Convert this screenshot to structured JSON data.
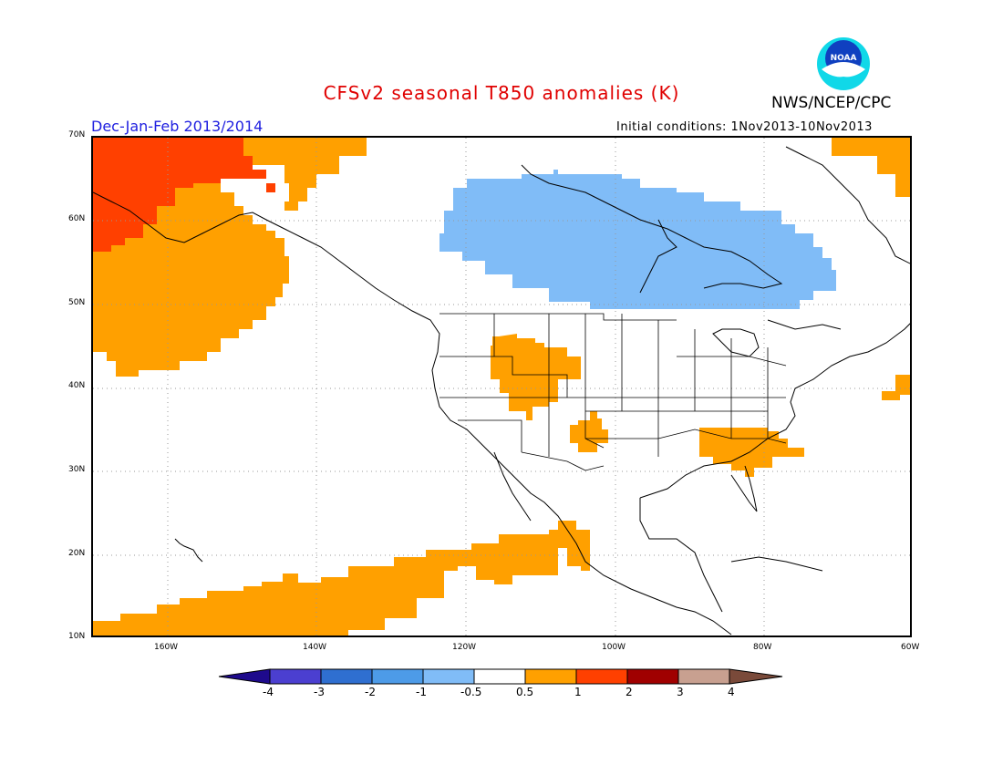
{
  "title": "CFSv2 seasonal T850 anomalies (K)",
  "agency": "NWS/NCEP/CPC",
  "logo_text": "NOAA",
  "season": "Dec-Jan-Feb 2013/2014",
  "initial_conditions": "Initial conditions: 1Nov2013-10Nov2013",
  "lat_labels": [
    "70N",
    "60N",
    "50N",
    "40N",
    "30N",
    "20N",
    "10N"
  ],
  "lon_labels": [
    "160W",
    "140W",
    "120W",
    "100W",
    "80W",
    "60W"
  ],
  "colorbar": {
    "labels": [
      "-4",
      "-3",
      "-2",
      "-1",
      "-0.5",
      "0.5",
      "1",
      "2",
      "3",
      "4"
    ],
    "colors": [
      "#1e0a8c",
      "#4b3fd0",
      "#2f6fd0",
      "#4d9be8",
      "#80bcf7",
      "#ffffff",
      "#ffa000",
      "#ff4000",
      "#a00000",
      "#c8a090",
      "#7a4a3a"
    ]
  },
  "anomaly_colors": {
    "warm_1": "#ffa000",
    "warm_2": "#ff4000",
    "cold_1": "#80bcf7"
  }
}
